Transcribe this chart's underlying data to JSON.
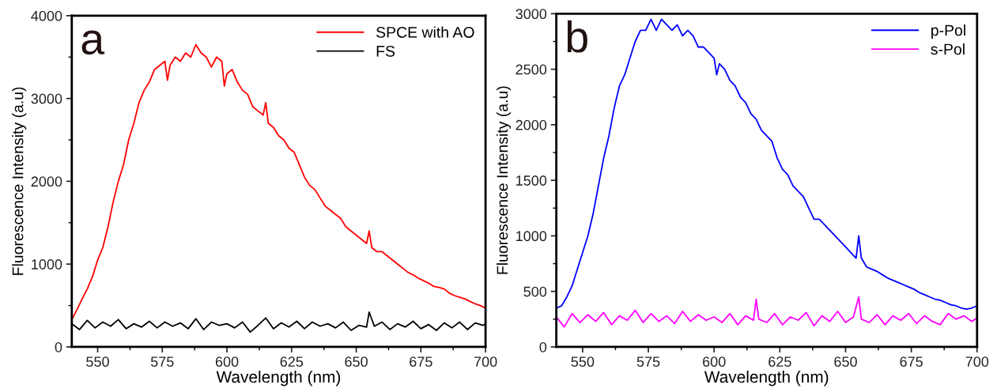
{
  "chart_data": [
    {
      "type": "line",
      "xlabel": "Wavelength (nm)",
      "ylabel": "Fluorescence Intensity (a.u)",
      "annotations": [
        "a"
      ],
      "legend": "top right",
      "xlim": [
        540,
        700
      ],
      "ylim": [
        0,
        4000
      ],
      "xticks": [
        550,
        575,
        600,
        625,
        650,
        675,
        700
      ],
      "yticks": [
        0,
        1000,
        2000,
        3000,
        4000
      ],
      "series": [
        {
          "name": "SPCE with AO",
          "color": "#ff0000",
          "x": [
            540,
            542,
            544,
            546,
            548,
            550,
            552,
            554,
            556,
            558,
            560,
            562,
            564,
            566,
            568,
            570,
            572,
            574,
            576,
            577,
            578,
            580,
            582,
            584,
            586,
            588,
            590,
            592,
            594,
            596,
            598,
            599,
            600,
            602,
            604,
            606,
            608,
            610,
            612,
            614,
            615,
            616,
            618,
            620,
            622,
            624,
            626,
            628,
            630,
            632,
            634,
            636,
            638,
            640,
            642,
            644,
            646,
            648,
            650,
            652,
            654,
            655,
            656,
            658,
            660,
            662,
            664,
            666,
            668,
            670,
            672,
            674,
            676,
            678,
            680,
            682,
            684,
            686,
            688,
            690,
            692,
            694,
            696,
            698,
            700
          ],
          "values": [
            330,
            450,
            580,
            700,
            850,
            1050,
            1200,
            1450,
            1750,
            2000,
            2200,
            2500,
            2700,
            2950,
            3100,
            3200,
            3350,
            3400,
            3450,
            3220,
            3400,
            3500,
            3450,
            3550,
            3500,
            3650,
            3550,
            3500,
            3380,
            3500,
            3450,
            3150,
            3300,
            3350,
            3200,
            3100,
            3050,
            2900,
            2850,
            2800,
            2950,
            2700,
            2650,
            2550,
            2500,
            2400,
            2350,
            2200,
            2050,
            1950,
            1900,
            1800,
            1700,
            1650,
            1600,
            1550,
            1450,
            1400,
            1350,
            1300,
            1250,
            1400,
            1200,
            1150,
            1150,
            1100,
            1050,
            1000,
            950,
            900,
            870,
            830,
            800,
            770,
            730,
            720,
            700,
            650,
            620,
            600,
            580,
            550,
            520,
            500,
            470
          ]
        },
        {
          "name": "FS",
          "color": "#000000",
          "x": [
            540,
            543,
            546,
            549,
            552,
            555,
            558,
            561,
            564,
            567,
            570,
            573,
            576,
            579,
            582,
            585,
            588,
            591,
            594,
            597,
            600,
            603,
            606,
            609,
            612,
            615,
            618,
            621,
            624,
            627,
            630,
            633,
            636,
            639,
            642,
            645,
            648,
            651,
            654,
            655,
            657,
            660,
            663,
            666,
            669,
            672,
            675,
            678,
            681,
            684,
            687,
            690,
            693,
            696,
            699,
            700
          ],
          "values": [
            280,
            210,
            320,
            230,
            300,
            250,
            330,
            220,
            280,
            240,
            310,
            230,
            300,
            250,
            290,
            220,
            340,
            210,
            300,
            260,
            280,
            230,
            300,
            180,
            260,
            350,
            220,
            290,
            240,
            310,
            220,
            300,
            250,
            280,
            230,
            300,
            200,
            260,
            240,
            420,
            250,
            300,
            210,
            280,
            240,
            310,
            220,
            270,
            200,
            290,
            230,
            300,
            210,
            290,
            260,
            280
          ]
        }
      ]
    },
    {
      "type": "line",
      "xlabel": "Wavelength (nm)",
      "ylabel": "Fluorescence Intensity (a.u)",
      "annotations": [
        "b"
      ],
      "legend": "top right",
      "xlim": [
        540,
        700
      ],
      "ylim": [
        0,
        3000
      ],
      "xticks": [
        550,
        575,
        600,
        625,
        650,
        675,
        700
      ],
      "yticks": [
        0,
        500,
        1000,
        1500,
        2000,
        2500,
        3000
      ],
      "series": [
        {
          "name": "p-Pol",
          "color": "#0000ff",
          "x": [
            540,
            542,
            544,
            546,
            548,
            550,
            552,
            554,
            556,
            558,
            560,
            562,
            564,
            566,
            568,
            570,
            572,
            574,
            576,
            578,
            580,
            582,
            584,
            586,
            588,
            590,
            592,
            594,
            596,
            598,
            600,
            601,
            602,
            604,
            606,
            608,
            610,
            612,
            614,
            616,
            618,
            620,
            622,
            624,
            626,
            628,
            630,
            632,
            634,
            636,
            638,
            640,
            642,
            644,
            646,
            648,
            650,
            652,
            654,
            655,
            656,
            658,
            660,
            662,
            664,
            666,
            668,
            670,
            672,
            674,
            676,
            678,
            680,
            682,
            684,
            686,
            688,
            690,
            692,
            694,
            696,
            698,
            700
          ],
          "values": [
            350,
            370,
            450,
            550,
            700,
            850,
            1000,
            1200,
            1450,
            1700,
            1900,
            2150,
            2350,
            2450,
            2600,
            2750,
            2850,
            2850,
            2950,
            2850,
            2950,
            2900,
            2850,
            2900,
            2800,
            2850,
            2800,
            2700,
            2700,
            2650,
            2600,
            2450,
            2550,
            2500,
            2400,
            2350,
            2250,
            2200,
            2100,
            2050,
            1950,
            1900,
            1850,
            1700,
            1600,
            1550,
            1450,
            1400,
            1350,
            1250,
            1150,
            1150,
            1100,
            1050,
            1000,
            950,
            900,
            850,
            800,
            1000,
            800,
            720,
            700,
            680,
            650,
            620,
            600,
            580,
            560,
            540,
            520,
            490,
            470,
            450,
            430,
            420,
            400,
            380,
            370,
            350,
            340,
            350,
            370
          ]
        },
        {
          "name": "s-Pol",
          "color": "#ff00ff",
          "x": [
            540,
            543,
            546,
            549,
            552,
            555,
            558,
            561,
            564,
            567,
            570,
            573,
            576,
            579,
            582,
            585,
            588,
            591,
            594,
            597,
            600,
            603,
            606,
            609,
            612,
            615,
            616,
            617,
            620,
            623,
            626,
            629,
            632,
            635,
            638,
            641,
            644,
            647,
            650,
            653,
            655,
            656,
            659,
            662,
            665,
            668,
            671,
            674,
            677,
            680,
            683,
            686,
            689,
            692,
            695,
            698,
            700
          ],
          "values": [
            270,
            180,
            300,
            220,
            290,
            230,
            310,
            200,
            280,
            240,
            330,
            220,
            300,
            230,
            280,
            210,
            320,
            230,
            290,
            240,
            270,
            220,
            300,
            200,
            280,
            240,
            430,
            250,
            220,
            300,
            200,
            270,
            240,
            310,
            190,
            280,
            230,
            320,
            220,
            270,
            450,
            250,
            220,
            290,
            200,
            280,
            240,
            300,
            210,
            280,
            230,
            200,
            300,
            250,
            280,
            230,
            260
          ]
        }
      ]
    }
  ]
}
